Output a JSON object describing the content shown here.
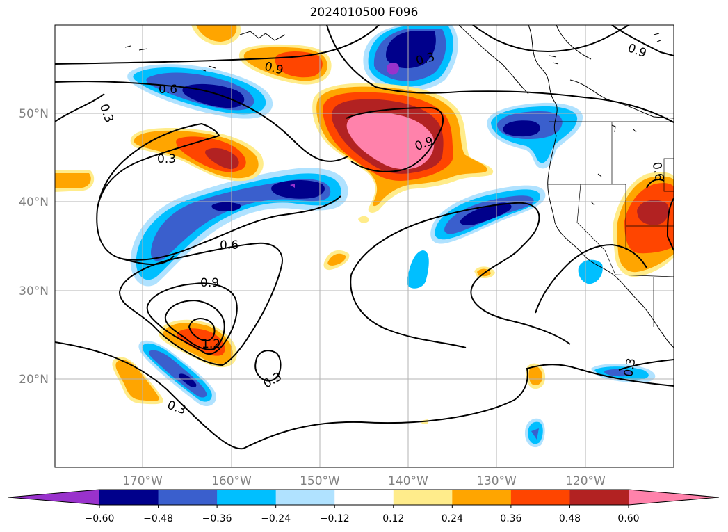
{
  "title": "2024010500 F096",
  "map": {
    "lon_ticks": [
      "170°W",
      "160°W",
      "150°W",
      "140°W",
      "130°W",
      "120°W"
    ],
    "lat_ticks": [
      "50°N",
      "40°N",
      "30°N",
      "20°N"
    ],
    "contour_labels": [
      "0.3",
      "0.6",
      "0.3",
      "0.6",
      "0.9",
      "1.2",
      "0.9",
      "0.9",
      "0.3",
      "0.3",
      "0.3",
      "0.6",
      "0.3",
      "0.9"
    ]
  },
  "colorbar": {
    "ticks": [
      "−0.60",
      "−0.48",
      "−0.36",
      "−0.24",
      "−0.12",
      "0.12",
      "0.24",
      "0.36",
      "0.48",
      "0.60"
    ],
    "colors": [
      "#9932cc",
      "#00008b",
      "#3a5fcd",
      "#00bfff",
      "#b0e2ff",
      "#ffffff",
      "#ffec8b",
      "#ffa500",
      "#ff4500",
      "#b22222",
      "#ff82ab"
    ]
  }
}
